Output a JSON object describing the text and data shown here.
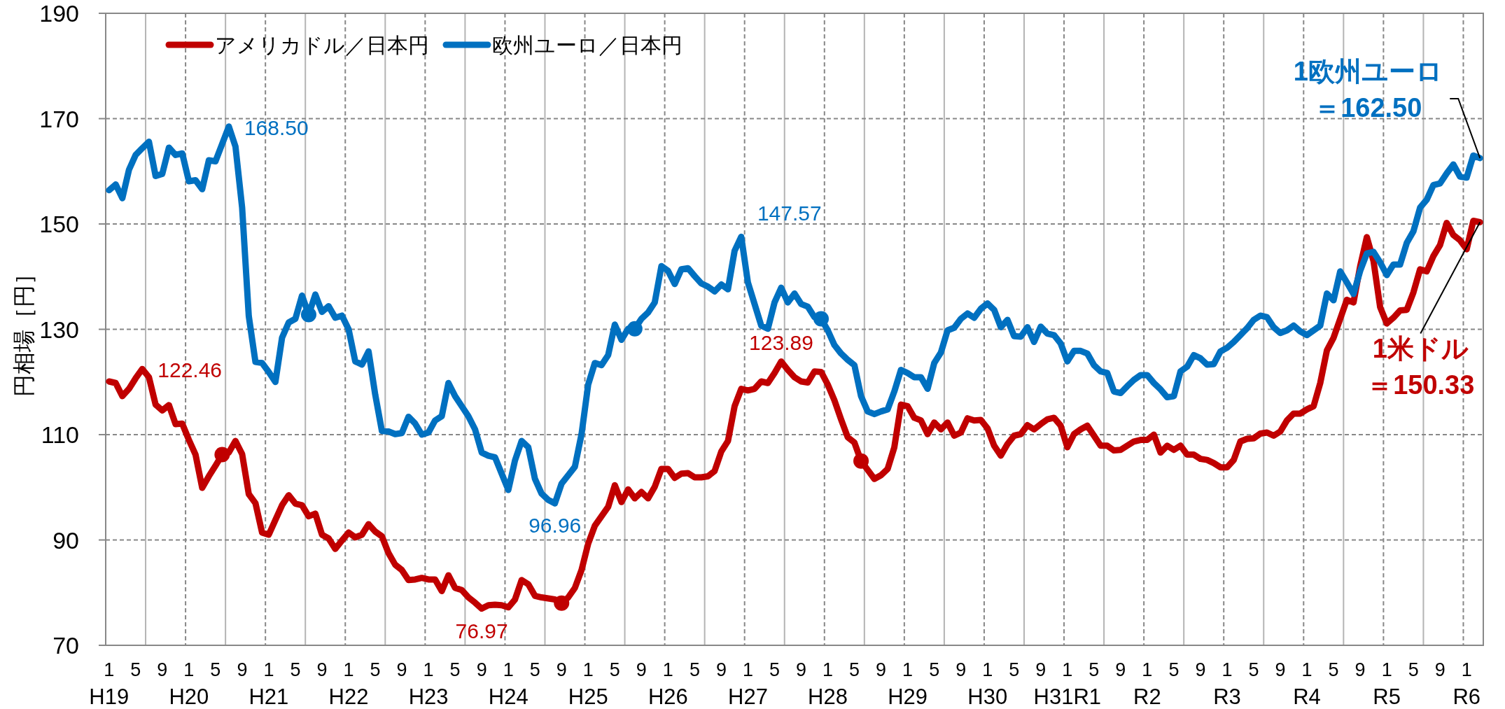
{
  "chart_data": {
    "type": "line",
    "ylabel": "円相場［円］",
    "ylim": [
      70,
      190
    ],
    "yticks": [
      70,
      90,
      110,
      130,
      150,
      170,
      190
    ],
    "grid": true,
    "legend": "top left",
    "categories": [
      "1\nH19",
      null,
      null,
      null,
      "5",
      null,
      null,
      null,
      "9",
      null,
      null,
      null,
      "1\nH20",
      null,
      null,
      null,
      "5",
      null,
      null,
      null,
      "9",
      null,
      null,
      null,
      "1\nH21",
      null,
      null,
      null,
      "5",
      null,
      null,
      null,
      "9",
      null,
      null,
      null,
      "1\nH22",
      null,
      null,
      null,
      "5",
      null,
      null,
      null,
      "9",
      null,
      null,
      null,
      "1\nH23",
      null,
      null,
      null,
      "5",
      null,
      null,
      null,
      "9",
      null,
      null,
      null,
      "1\nH24",
      null,
      null,
      null,
      "5",
      null,
      null,
      null,
      "9",
      null,
      null,
      null,
      "1\nH25",
      null,
      null,
      null,
      "5",
      null,
      null,
      null,
      "9",
      null,
      null,
      null,
      "1\nH26",
      null,
      null,
      null,
      "5",
      null,
      null,
      null,
      "9",
      null,
      null,
      null,
      "1\nH27",
      null,
      null,
      null,
      "5",
      null,
      null,
      null,
      "9",
      null,
      null,
      null,
      "1\nH28",
      null,
      null,
      null,
      "5",
      null,
      null,
      null,
      "9",
      null,
      null,
      null,
      "1\nH29",
      null,
      null,
      null,
      "5",
      null,
      null,
      null,
      "9",
      null,
      null,
      null,
      "1\nH30",
      null,
      null,
      null,
      "5",
      null,
      null,
      null,
      "9",
      null,
      null,
      null,
      "1\nH31R1",
      null,
      null,
      null,
      "5",
      null,
      null,
      null,
      "9",
      null,
      null,
      null,
      "1\nR2",
      null,
      null,
      null,
      "5",
      null,
      null,
      null,
      "9",
      null,
      null,
      null,
      "1\nR3",
      null,
      null,
      null,
      "5",
      null,
      null,
      null,
      "9",
      null,
      null,
      null,
      "1\nR4",
      null,
      null,
      null,
      "5",
      null,
      null,
      null,
      "9",
      null,
      null,
      null,
      "1\nR5",
      null,
      null,
      null,
      "5",
      null,
      null,
      null,
      "9",
      null,
      null,
      null,
      "1\nR6",
      null,
      null
    ],
    "series": [
      {
        "name": "アメリカドル／日本円",
        "marker": "none",
        "color": "#c00000",
        "values": [
          120.1,
          119.8,
          117.3,
          118.7,
          120.7,
          122.46,
          120.9,
          115.7,
          114.6,
          115.6,
          112.0,
          112.1,
          109.0,
          106.2,
          99.9,
          102.1,
          104.1,
          106.2,
          106.6,
          108.8,
          106.3,
          98.7,
          97.0,
          91.4,
          91.0,
          93.8,
          96.6,
          98.5,
          96.9,
          96.6,
          94.5,
          95.0,
          91.0,
          90.3,
          88.3,
          89.9,
          91.4,
          90.5,
          91.0,
          93.0,
          91.6,
          90.7,
          87.5,
          85.3,
          84.3,
          82.4,
          82.5,
          82.8,
          82.5,
          82.5,
          80.3,
          83.3,
          80.9,
          80.5,
          79.1,
          78.1,
          76.97,
          77.6,
          77.7,
          77.6,
          77.2,
          78.7,
          82.4,
          81.6,
          79.4,
          79.1,
          78.9,
          78.7,
          78.0,
          79.1,
          80.9,
          84.3,
          89.3,
          92.7,
          94.5,
          96.3,
          100.4,
          97.2,
          99.6,
          97.9,
          99.1,
          97.9,
          100.1,
          103.5,
          103.5,
          101.8,
          102.6,
          102.7,
          101.9,
          101.9,
          102.1,
          103.1,
          106.8,
          108.8,
          115.4,
          118.7,
          118.4,
          118.7,
          120.1,
          119.8,
          121.7,
          123.89,
          122.3,
          120.9,
          120.1,
          119.9,
          122.0,
          121.9,
          119.5,
          116.5,
          112.9,
          109.5,
          108.5,
          105.0,
          103.3,
          101.6,
          102.3,
          103.5,
          107.6,
          115.7,
          115.4,
          113.2,
          112.7,
          110.1,
          112.3,
          111.0,
          112.3,
          109.8,
          110.4,
          113.1,
          112.7,
          112.8,
          111.2,
          107.9,
          106.0,
          108.2,
          109.8,
          110.1,
          111.8,
          111.0,
          112.0,
          112.9,
          113.2,
          111.7,
          107.6,
          110.1,
          111.0,
          111.7,
          109.8,
          107.9,
          107.9,
          107.0,
          107.1,
          107.9,
          108.7,
          109.0,
          109.0,
          110.0,
          106.6,
          107.9,
          107.1,
          107.9,
          106.2,
          106.2,
          105.4,
          105.2,
          104.6,
          103.8,
          103.8,
          105.2,
          108.7,
          109.2,
          109.3,
          110.2,
          110.4,
          109.8,
          110.6,
          112.7,
          114.0,
          114.0,
          114.8,
          115.4,
          119.8,
          126.0,
          128.4,
          132.0,
          135.6,
          135.1,
          142.0,
          147.5,
          143.0,
          134.2,
          131.1,
          132.2,
          133.6,
          133.7,
          137.0,
          141.4,
          141.0,
          143.9,
          146.0,
          150.2,
          147.9,
          146.9,
          145.2,
          150.6,
          150.33
        ],
        "value_labels": [
          null,
          null,
          null,
          null,
          null,
          "122.46",
          null,
          null,
          null,
          null,
          null,
          null,
          null,
          null,
          null,
          null,
          null,
          null,
          null,
          null,
          null,
          null,
          null,
          null,
          null,
          null,
          null,
          null,
          null,
          null,
          null,
          null,
          null,
          null,
          null,
          null,
          null,
          null,
          null,
          null,
          null,
          null,
          null,
          null,
          null,
          null,
          null,
          null,
          null,
          null,
          null,
          null,
          null,
          null,
          null,
          null,
          "76.97",
          null,
          null,
          null,
          null,
          null,
          null,
          null,
          null,
          null,
          null,
          null,
          null,
          null,
          null,
          null,
          null,
          null,
          null,
          null,
          null,
          null,
          null,
          null,
          null,
          null,
          null,
          null,
          null,
          null,
          null,
          null,
          null,
          null,
          null,
          null,
          null,
          null,
          null,
          null,
          null,
          null,
          null,
          null,
          null,
          "123.89",
          null,
          null,
          null,
          null,
          null,
          null,
          null,
          null,
          null,
          null,
          null,
          null,
          null,
          null,
          null,
          null,
          null,
          null,
          null,
          null,
          null,
          null,
          null,
          null,
          null,
          null,
          null,
          null,
          null,
          null,
          null,
          null,
          null,
          null,
          null,
          null,
          null,
          null,
          null,
          null,
          null,
          null,
          null,
          null,
          null,
          null,
          null,
          null,
          null,
          null,
          null,
          null,
          null,
          null,
          null,
          null,
          null,
          null,
          null,
          null,
          null,
          null,
          null,
          null,
          null,
          null,
          null,
          null,
          null,
          null,
          null,
          null,
          null,
          null,
          null,
          null,
          null,
          null,
          null,
          null,
          null,
          null,
          null,
          null,
          null,
          null,
          null,
          null,
          null,
          null,
          null,
          null,
          null,
          null,
          null,
          null,
          null,
          null,
          null,
          null,
          null,
          null,
          null,
          null,
          "1米ドル＝150.33"
        ]
      },
      {
        "name": "欧州ユーロ／日本円",
        "marker": "none",
        "color": "#0070c0",
        "values": [
          156.4,
          157.5,
          154.9,
          160.3,
          163.1,
          164.4,
          165.6,
          159.1,
          159.5,
          164.5,
          163.1,
          163.4,
          158.1,
          158.3,
          156.6,
          162.1,
          161.9,
          165.2,
          168.5,
          164.7,
          153.1,
          132.5,
          123.8,
          123.6,
          121.9,
          120.0,
          128.4,
          131.3,
          132.0,
          136.4,
          132.8,
          136.6,
          133.3,
          134.4,
          132.2,
          132.6,
          130.0,
          123.9,
          123.3,
          125.8,
          117.6,
          110.7,
          110.6,
          110.1,
          110.3,
          113.4,
          112.1,
          110.0,
          110.4,
          112.7,
          113.5,
          119.8,
          117.3,
          115.4,
          113.5,
          111.0,
          106.6,
          106.0,
          105.7,
          102.6,
          99.5,
          105.1,
          108.8,
          107.6,
          101.6,
          98.8,
          97.6,
          96.96,
          100.7,
          102.3,
          103.9,
          110.1,
          119.5,
          123.6,
          123.2,
          125.1,
          130.9,
          128.0,
          130.1,
          130.1,
          132.0,
          133.2,
          135.1,
          142.0,
          141.1,
          138.6,
          141.4,
          141.6,
          140.1,
          138.7,
          138.1,
          137.2,
          138.5,
          137.6,
          144.9,
          147.57,
          138.9,
          134.8,
          130.7,
          130.1,
          135.1,
          137.9,
          135.1,
          136.8,
          134.8,
          134.3,
          132.3,
          132.0,
          129.8,
          127.0,
          125.4,
          124.2,
          123.2,
          117.3,
          114.4,
          113.9,
          114.4,
          114.8,
          118.2,
          122.3,
          121.7,
          120.9,
          120.9,
          118.7,
          123.6,
          125.6,
          129.8,
          130.3,
          132.0,
          133.0,
          132.2,
          133.9,
          134.9,
          133.7,
          130.4,
          131.8,
          128.7,
          128.6,
          130.4,
          127.6,
          130.5,
          129.2,
          128.9,
          127.3,
          123.9,
          125.9,
          125.9,
          125.4,
          123.2,
          122.0,
          121.7,
          118.2,
          117.9,
          119.2,
          120.4,
          121.3,
          121.3,
          119.8,
          118.6,
          117.1,
          117.3,
          122.0,
          122.9,
          125.1,
          124.5,
          123.3,
          123.4,
          125.8,
          126.5,
          127.6,
          128.9,
          130.2,
          131.8,
          132.6,
          132.3,
          130.4,
          129.3,
          129.8,
          130.7,
          129.6,
          128.9,
          129.8,
          130.7,
          136.8,
          135.5,
          141.0,
          138.9,
          136.7,
          141.1,
          144.4,
          144.7,
          142.7,
          140.3,
          142.3,
          142.3,
          146.4,
          148.6,
          153.1,
          154.6,
          157.4,
          157.7,
          159.6,
          161.3,
          159.0,
          158.8,
          163.0,
          162.5
        ],
        "value_labels": [
          null,
          null,
          null,
          null,
          null,
          null,
          null,
          null,
          null,
          null,
          null,
          null,
          null,
          null,
          null,
          null,
          null,
          null,
          "168.50",
          null,
          null,
          null,
          null,
          null,
          null,
          null,
          null,
          null,
          null,
          null,
          null,
          null,
          null,
          null,
          null,
          null,
          null,
          null,
          null,
          null,
          null,
          null,
          null,
          null,
          null,
          null,
          null,
          null,
          null,
          null,
          null,
          null,
          null,
          null,
          null,
          null,
          null,
          null,
          null,
          null,
          null,
          null,
          null,
          null,
          null,
          null,
          null,
          "96.96",
          null,
          null,
          null,
          null,
          null,
          null,
          null,
          null,
          null,
          null,
          null,
          null,
          null,
          null,
          null,
          null,
          null,
          null,
          null,
          null,
          null,
          null,
          null,
          null,
          null,
          null,
          null,
          "147.57",
          null,
          null,
          null,
          null,
          null,
          null,
          null,
          null,
          null,
          null,
          null,
          null,
          null,
          null,
          null,
          null,
          null,
          null,
          null,
          null,
          null,
          null,
          null,
          null,
          null,
          null,
          null,
          null,
          null,
          null,
          null,
          null,
          null,
          null,
          null,
          null,
          null,
          null,
          null,
          null,
          null,
          null,
          null,
          null,
          null,
          null,
          null,
          null,
          null,
          null,
          null,
          null,
          null,
          null,
          null,
          null,
          null,
          null,
          null,
          null,
          null,
          null,
          null,
          null,
          null,
          null,
          null,
          null,
          null,
          null,
          null,
          null,
          null,
          null,
          null,
          null,
          null,
          null,
          null,
          null,
          null,
          null,
          null,
          null,
          null,
          null,
          null,
          null,
          null,
          null,
          null,
          null,
          null,
          null,
          null,
          null,
          null,
          null,
          null,
          null,
          null,
          null,
          null,
          null,
          null,
          null,
          null,
          null,
          null,
          null,
          "1欧州ユーロ＝162.50"
        ]
      },
      {
        "type": "scatter",
        "marker": "circle",
        "color": "#c00000",
        "values": [
          null,
          null,
          null,
          null,
          null,
          null,
          null,
          null,
          null,
          null,
          null,
          null,
          null,
          null,
          null,
          null,
          null,
          106.2,
          null,
          null,
          null,
          null,
          null,
          null,
          null,
          null,
          null,
          null,
          null,
          null,
          null,
          null,
          null,
          null,
          null,
          null,
          null,
          null,
          null,
          null,
          null,
          null,
          null,
          null,
          null,
          null,
          null,
          null,
          null,
          null,
          null,
          null,
          null,
          null,
          null,
          null,
          null,
          null,
          null,
          null,
          null,
          null,
          null,
          null,
          null,
          null,
          null,
          null,
          78.0,
          null,
          null,
          null,
          null,
          null,
          null,
          null,
          null,
          null,
          null,
          null,
          null,
          null,
          null,
          null,
          null,
          null,
          null,
          null,
          null,
          null,
          null,
          null,
          null,
          null,
          null,
          null,
          null,
          null,
          null,
          null,
          null,
          null,
          null,
          null,
          null,
          null,
          null,
          null,
          null,
          null,
          null,
          null,
          null,
          105.0,
          null,
          null,
          null,
          null,
          null,
          null,
          null,
          null,
          null,
          null,
          null,
          null,
          null,
          null,
          null,
          null,
          null,
          null,
          null,
          null,
          null,
          null,
          null,
          null,
          null,
          null,
          null,
          null,
          null,
          null,
          null,
          null,
          null,
          null,
          null,
          null,
          null,
          null,
          null,
          null,
          null,
          null,
          null,
          null,
          null,
          null,
          null,
          null,
          null,
          null,
          null,
          null,
          null,
          null,
          null,
          null,
          null,
          null,
          null,
          null,
          null,
          null,
          null,
          null,
          null,
          null,
          null,
          null,
          null,
          null,
          null,
          null,
          null,
          null,
          null,
          null,
          null,
          null,
          null,
          null,
          null,
          null,
          null,
          null,
          null,
          null,
          null,
          null,
          null,
          null,
          null,
          null,
          null
        ]
      },
      {
        "type": "scatter",
        "marker": "circle",
        "color": "#0070c0",
        "values": [
          null,
          null,
          null,
          null,
          null,
          null,
          null,
          null,
          null,
          null,
          null,
          null,
          null,
          null,
          null,
          null,
          null,
          null,
          null,
          null,
          null,
          null,
          null,
          null,
          null,
          null,
          null,
          null,
          null,
          null,
          132.8,
          null,
          null,
          null,
          null,
          null,
          null,
          null,
          null,
          null,
          null,
          null,
          null,
          null,
          null,
          null,
          null,
          null,
          null,
          null,
          null,
          null,
          null,
          null,
          null,
          null,
          null,
          null,
          null,
          null,
          null,
          null,
          null,
          null,
          null,
          null,
          null,
          null,
          null,
          null,
          null,
          null,
          null,
          null,
          null,
          null,
          null,
          null,
          null,
          130.1,
          null,
          null,
          null,
          null,
          null,
          null,
          null,
          null,
          null,
          null,
          null,
          null,
          null,
          null,
          null,
          null,
          null,
          null,
          null,
          null,
          null,
          null,
          null,
          null,
          null,
          null,
          null,
          132.0,
          null,
          null,
          null,
          null,
          null,
          null,
          null,
          null,
          null,
          null,
          null,
          null,
          null,
          null,
          null,
          null,
          null,
          null,
          null,
          null,
          null,
          null,
          null,
          null,
          null,
          null,
          null,
          null,
          null,
          null,
          null,
          null,
          null,
          null,
          null,
          null,
          null,
          null,
          null,
          null,
          null,
          null,
          null,
          null,
          null,
          null,
          null,
          null,
          null,
          null,
          null,
          null,
          null,
          null,
          null,
          null,
          null,
          null,
          null,
          null,
          null,
          null,
          null,
          null,
          null,
          null,
          null,
          null,
          null,
          null,
          null,
          null,
          null,
          null,
          null,
          null,
          null,
          null,
          null,
          null,
          null,
          null,
          null,
          null,
          null,
          null,
          null,
          null,
          null,
          null,
          null,
          null,
          null,
          null,
          null,
          null,
          null,
          null,
          null
        ]
      }
    ]
  }
}
